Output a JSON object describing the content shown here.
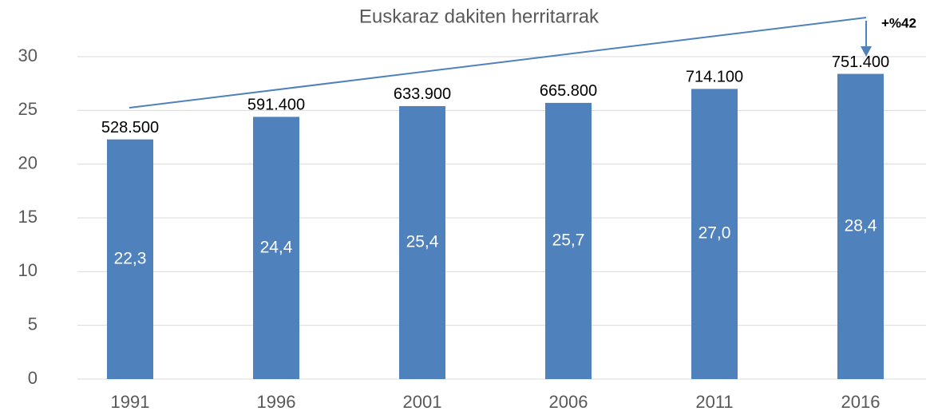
{
  "chart_data": {
    "type": "bar",
    "title": "Euskaraz dakiten herritarrak",
    "categories": [
      "1991",
      "1996",
      "2001",
      "2006",
      "2011",
      "2016"
    ],
    "values": [
      22.3,
      24.4,
      25.4,
      25.7,
      27.0,
      28.4
    ],
    "value_labels": [
      "22,3",
      "24,4",
      "25,4",
      "25,7",
      "27,0",
      "28,4"
    ],
    "count_labels": [
      "528.500",
      "591.400",
      "633.900",
      "665.800",
      "714.100",
      "751.400"
    ],
    "annotation": "+%42",
    "color": "#4f81bd",
    "ylim": [
      0,
      30
    ],
    "yticks": [
      0,
      5,
      10,
      15,
      20,
      25,
      30
    ],
    "grid": true
  }
}
